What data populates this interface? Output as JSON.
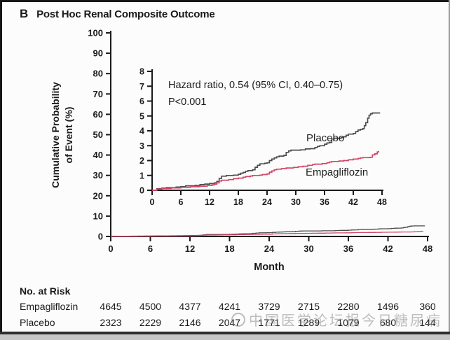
{
  "figure": {
    "panel_letter": "B",
    "title": "Post Hoc Renal Composite Outcome"
  },
  "main_axis": {
    "ylabel_line1": "Cumulative Probability",
    "ylabel_line2": "of Event (%)",
    "xlabel": "Month"
  },
  "annotation": {
    "hazard_ratio": "Hazard ratio, 0.54 (95% CI, 0.40–0.75)",
    "p_value": "P<0.001"
  },
  "risk_table": {
    "heading": "No. at Risk",
    "months": [
      0,
      6,
      12,
      18,
      24,
      30,
      36,
      42,
      48
    ],
    "rows": [
      {
        "label": "Empagliflozin",
        "values": [
          "4645",
          "4500",
          "4377",
          "4241",
          "3729",
          "2715",
          "2280",
          "1496",
          "360"
        ]
      },
      {
        "label": "Placebo",
        "values": [
          "2323",
          "2229",
          "2146",
          "2047",
          "1771",
          "1289",
          "1079",
          "680",
          "144"
        ]
      }
    ]
  },
  "watermark": {
    "text": "中国医学论坛报今日糖尿病"
  },
  "colors": {
    "axis": "#1a1a1a",
    "placebo_line": "#4d4d4d",
    "empagliflozin_line": "#d2476a"
  },
  "chart_data": {
    "type": "line",
    "subtype": "kaplan-meier-step",
    "title": "Post Hoc Renal Composite Outcome",
    "xlabel": "Month",
    "ylabel": "Cumulative Probability of Event (%)",
    "x_ticks": [
      0,
      6,
      12,
      18,
      24,
      30,
      36,
      42,
      48
    ],
    "xlim": [
      0,
      48
    ],
    "main_ylim": [
      0,
      100
    ],
    "main_yticks": [
      0,
      10,
      20,
      30,
      40,
      50,
      60,
      70,
      80,
      90,
      100
    ],
    "inset_ylim": [
      0,
      8
    ],
    "inset_yticks": [
      0,
      1,
      2,
      3,
      4,
      5,
      6,
      7,
      8
    ],
    "grid": false,
    "legend_position": "inline-labels",
    "annotation": "Hazard ratio, 0.54 (95% CI, 0.40–0.75) P<0.001",
    "series": [
      {
        "name": "Placebo",
        "color": "#4d4d4d",
        "points": [
          [
            0,
            0
          ],
          [
            1,
            0.1
          ],
          [
            2,
            0.15
          ],
          [
            3,
            0.18
          ],
          [
            5,
            0.22
          ],
          [
            6,
            0.25
          ],
          [
            7,
            0.3
          ],
          [
            9,
            0.33
          ],
          [
            10,
            0.38
          ],
          [
            11,
            0.42
          ],
          [
            12,
            0.45
          ],
          [
            13,
            0.5
          ],
          [
            13.5,
            0.6
          ],
          [
            14,
            0.8
          ],
          [
            14.5,
            0.95
          ],
          [
            15.5,
            1.0
          ],
          [
            17,
            1.02
          ],
          [
            18,
            1.08
          ],
          [
            18.5,
            1.15
          ],
          [
            19,
            1.2
          ],
          [
            19.5,
            1.28
          ],
          [
            20,
            1.32
          ],
          [
            21,
            1.38
          ],
          [
            21.5,
            1.55
          ],
          [
            22,
            1.68
          ],
          [
            22.5,
            1.78
          ],
          [
            23.5,
            1.82
          ],
          [
            24,
            1.85
          ],
          [
            24.5,
            2.0
          ],
          [
            25,
            2.1
          ],
          [
            25.5,
            2.18
          ],
          [
            26,
            2.25
          ],
          [
            26.5,
            2.3
          ],
          [
            27.5,
            2.35
          ],
          [
            28,
            2.55
          ],
          [
            28.5,
            2.65
          ],
          [
            29,
            2.7
          ],
          [
            31,
            2.72
          ],
          [
            32,
            2.78
          ],
          [
            33,
            2.8
          ],
          [
            34,
            2.88
          ],
          [
            34.5,
            2.95
          ],
          [
            35,
            3.0
          ],
          [
            36,
            3.1
          ],
          [
            36.5,
            3.18
          ],
          [
            37,
            3.22
          ],
          [
            37.5,
            3.45
          ],
          [
            38,
            3.5
          ],
          [
            39.5,
            3.55
          ],
          [
            40,
            3.6
          ],
          [
            40.5,
            3.7
          ],
          [
            41,
            3.78
          ],
          [
            42,
            3.82
          ],
          [
            42.5,
            3.95
          ],
          [
            43,
            4.05
          ],
          [
            43.5,
            4.1
          ],
          [
            44,
            4.15
          ],
          [
            44.3,
            4.35
          ],
          [
            44.6,
            4.55
          ],
          [
            45,
            4.85
          ],
          [
            45.3,
            5.05
          ],
          [
            45.6,
            5.15
          ],
          [
            46,
            5.2
          ],
          [
            47.6,
            5.2
          ]
        ]
      },
      {
        "name": "Empagliflozin",
        "color": "#d2476a",
        "points": [
          [
            0,
            0
          ],
          [
            1,
            0.08
          ],
          [
            2,
            0.12
          ],
          [
            4,
            0.16
          ],
          [
            6,
            0.2
          ],
          [
            8,
            0.24
          ],
          [
            10,
            0.28
          ],
          [
            11.5,
            0.32
          ],
          [
            12.5,
            0.36
          ],
          [
            13,
            0.42
          ],
          [
            13.5,
            0.5
          ],
          [
            14,
            0.62
          ],
          [
            14.5,
            0.68
          ],
          [
            16,
            0.72
          ],
          [
            17,
            0.78
          ],
          [
            18,
            0.82
          ],
          [
            19,
            0.88
          ],
          [
            19.5,
            0.92
          ],
          [
            20.5,
            0.96
          ],
          [
            21,
            1.0
          ],
          [
            22.5,
            1.02
          ],
          [
            23,
            1.06
          ],
          [
            24,
            1.1
          ],
          [
            24.5,
            1.22
          ],
          [
            25,
            1.3
          ],
          [
            25.5,
            1.38
          ],
          [
            26,
            1.42
          ],
          [
            27,
            1.46
          ],
          [
            28,
            1.5
          ],
          [
            29.5,
            1.54
          ],
          [
            30.5,
            1.58
          ],
          [
            31.5,
            1.62
          ],
          [
            32.5,
            1.68
          ],
          [
            33.5,
            1.73
          ],
          [
            34,
            1.76
          ],
          [
            35.5,
            1.8
          ],
          [
            36.5,
            1.85
          ],
          [
            37,
            1.9
          ],
          [
            37.5,
            1.94
          ],
          [
            39,
            1.97
          ],
          [
            40,
            2.0
          ],
          [
            41,
            2.05
          ],
          [
            42,
            2.1
          ],
          [
            43,
            2.14
          ],
          [
            43.5,
            2.18
          ],
          [
            44,
            2.2
          ],
          [
            45.5,
            2.22
          ],
          [
            46,
            2.38
          ],
          [
            46.5,
            2.45
          ],
          [
            47,
            2.58
          ],
          [
            47.3,
            2.65
          ]
        ]
      }
    ],
    "no_at_risk": {
      "months": [
        0,
        6,
        12,
        18,
        24,
        30,
        36,
        42,
        48
      ],
      "Empagliflozin": [
        4645,
        4500,
        4377,
        4241,
        3729,
        2715,
        2280,
        1496,
        360
      ],
      "Placebo": [
        2323,
        2229,
        2146,
        2047,
        1771,
        1289,
        1079,
        680,
        144
      ]
    }
  }
}
